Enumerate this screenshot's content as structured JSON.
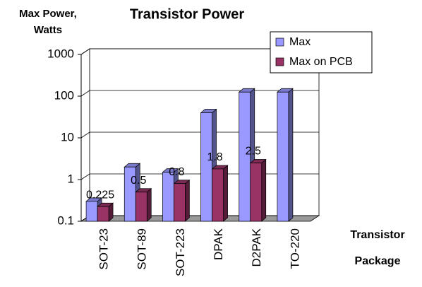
{
  "chart_data": {
    "type": "bar3d",
    "title": "Transistor Power",
    "ylabel": [
      "Max Power,",
      "Watts"
    ],
    "xlabel": [
      "Transistor",
      "Package"
    ],
    "categories": [
      "SOT-23",
      "SOT-89",
      "SOT-223",
      "DPAK",
      "D2PAK",
      "TO-220"
    ],
    "series": [
      {
        "name": "Max",
        "color": "#9999ff",
        "values": [
          0.3,
          2,
          1.5,
          40,
          125,
          125
        ]
      },
      {
        "name": "Max on PCB",
        "color": "#993366",
        "values": [
          0.225,
          0.5,
          0.8,
          1.8,
          2.5,
          null
        ],
        "show_values": true
      }
    ],
    "ylim": [
      0.1,
      1000
    ],
    "yticks": [
      0.1,
      1,
      10,
      100,
      1000
    ],
    "log_scale": true,
    "grid": true,
    "legend": "top-right"
  }
}
